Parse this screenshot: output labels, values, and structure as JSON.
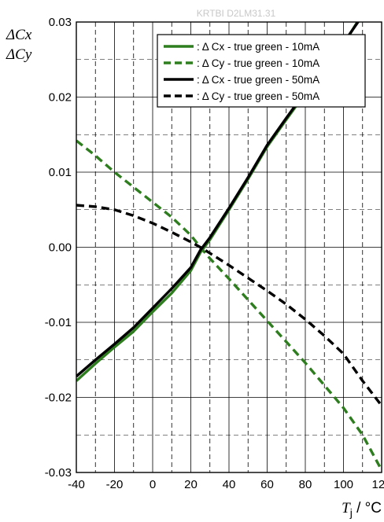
{
  "watermark": "KRTBI D2LM31.31",
  "chart_data": {
    "type": "line",
    "ylabel_lines": [
      "ΔCx",
      "ΔCy"
    ],
    "xlabel_symbol": "T",
    "xlabel_subscript": "j",
    "xlabel_unit": " / °C",
    "xlim": [
      -40,
      120
    ],
    "ylim": [
      -0.03,
      0.03
    ],
    "xticks": [
      -40,
      -20,
      0,
      20,
      40,
      60,
      80,
      100,
      120
    ],
    "xtick_labels": [
      "-40",
      "-20",
      "0",
      "20",
      "40",
      "60",
      "80",
      "100",
      "120"
    ],
    "yticks": [
      -0.03,
      -0.02,
      -0.01,
      0.0,
      0.01,
      0.02,
      0.03
    ],
    "ytick_labels": [
      "-0.03",
      "-0.02",
      "-0.01",
      "0.00",
      "0.01",
      "0.02",
      "0.03"
    ],
    "grid": true,
    "legend_position": "top-right",
    "series": [
      {
        "name": ": Δ Cx - true green - 10mA",
        "color": "#2e7d1e",
        "dash": "solid",
        "x": [
          -40,
          -30,
          -20,
          -10,
          0,
          10,
          20,
          25,
          30,
          40,
          50,
          60,
          70,
          80,
          90,
          100,
          108
        ],
        "y": [
          -0.0178,
          -0.0155,
          -0.0133,
          -0.0112,
          -0.0086,
          -0.0061,
          -0.0031,
          -0.0007,
          0.001,
          0.005,
          0.0091,
          0.0134,
          0.017,
          0.0205,
          0.0238,
          0.027,
          0.0303
        ]
      },
      {
        "name": ": Δ Cy - true green - 10mA",
        "color": "#2e7d1e",
        "dash": "dashed",
        "x": [
          -40,
          -30,
          -20,
          -10,
          0,
          10,
          20,
          25,
          30,
          40,
          50,
          60,
          70,
          80,
          90,
          100,
          110,
          120
        ],
        "y": [
          0.0142,
          0.0122,
          0.01,
          0.008,
          0.006,
          0.004,
          0.0016,
          0.0,
          -0.0015,
          -0.0042,
          -0.007,
          -0.0098,
          -0.0126,
          -0.0154,
          -0.0184,
          -0.0214,
          -0.025,
          -0.0297
        ]
      },
      {
        "name": ": Δ Cx - true green - 50mA",
        "color": "#000000",
        "dash": "solid",
        "x": [
          -40,
          -30,
          -20,
          -10,
          0,
          10,
          20,
          25,
          30,
          40,
          50,
          60,
          70,
          80,
          90,
          100,
          109
        ],
        "y": [
          -0.0172,
          -0.015,
          -0.0129,
          -0.0107,
          -0.0081,
          -0.0055,
          -0.0027,
          -0.0004,
          0.0013,
          0.0052,
          0.0093,
          0.0136,
          0.0172,
          0.0207,
          0.024,
          0.0272,
          0.0305
        ]
      },
      {
        "name": ": Δ Cy - true green - 50mA",
        "color": "#000000",
        "dash": "dashed",
        "x": [
          -40,
          -30,
          -20,
          -10,
          0,
          10,
          20,
          25,
          30,
          40,
          50,
          60,
          70,
          80,
          90,
          100,
          110,
          120
        ],
        "y": [
          0.0056,
          0.0054,
          0.005,
          0.0042,
          0.0032,
          0.002,
          0.0007,
          0.0,
          -0.0008,
          -0.0024,
          -0.0041,
          -0.0058,
          -0.0076,
          -0.0096,
          -0.0118,
          -0.0142,
          -0.0178,
          -0.0211
        ]
      }
    ]
  }
}
